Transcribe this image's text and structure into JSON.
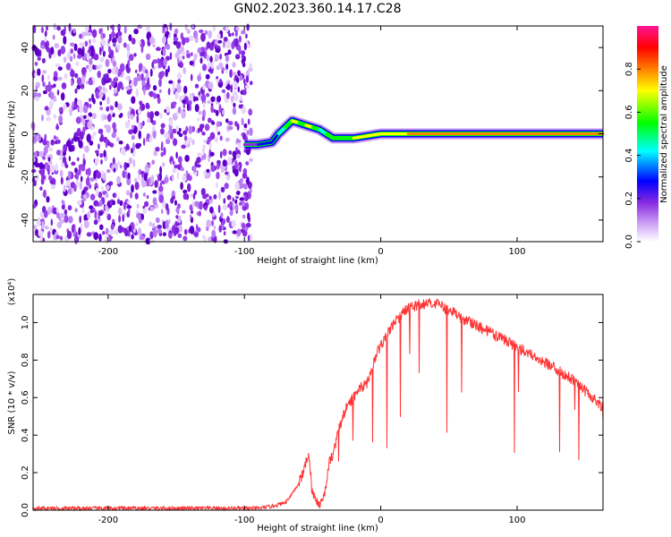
{
  "title": "GN02.2023.360.14.17.C28",
  "chart_data": [
    {
      "type": "heatmap",
      "title": "",
      "xlabel": "Height of straight line (km)",
      "ylabel": "Frequency (Hz)",
      "xlim": [
        -255,
        163
      ],
      "ylim": [
        -50,
        50
      ],
      "xticks": [
        -200,
        -100,
        0,
        100
      ],
      "yticks": [
        -40,
        -20,
        0,
        20,
        40
      ],
      "colorbar": {
        "label": "Normalized spectral amplitude",
        "range": [
          0.0,
          1.0
        ],
        "ticks": [
          0.0,
          0.2,
          0.4,
          0.6,
          0.8
        ],
        "colormap": [
          "#ffffff",
          "#8a2be2",
          "#0000ff",
          "#00ffff",
          "#00ff00",
          "#ffff00",
          "#ff7f00",
          "#ff0000",
          "#ff1493"
        ]
      },
      "noise_region_x": [
        -255,
        -95
      ],
      "signal_track": {
        "x": [
          -100,
          -90,
          -80,
          -75,
          -70,
          -65,
          -60,
          -55,
          -50,
          -45,
          -40,
          -35,
          -30,
          -20,
          -10,
          0,
          20,
          60,
          100,
          163
        ],
        "frequency_hz": [
          -5,
          -5,
          -4,
          0,
          3,
          6,
          5,
          4,
          3,
          2,
          0,
          -2,
          -2,
          -2,
          -1,
          0,
          0,
          0,
          0,
          0
        ],
        "amplitude": [
          0.2,
          0.3,
          0.35,
          0.5,
          0.6,
          0.7,
          0.6,
          0.7,
          0.55,
          0.5,
          0.6,
          0.6,
          0.65,
          0.7,
          0.7,
          0.75,
          0.8,
          0.8,
          0.8,
          0.5
        ]
      }
    },
    {
      "type": "line",
      "title": "",
      "xlabel": "Height of straight line (km)",
      "ylabel": "SNR (10 * v/v)",
      "y_multiplier": "(x10⁴)",
      "xlim": [
        -255,
        163
      ],
      "ylim": [
        0,
        1.15
      ],
      "xticks": [
        -200,
        -100,
        0,
        100
      ],
      "yticks": [
        0.0,
        0.2,
        0.4,
        0.6,
        0.8,
        1.0
      ],
      "yticklabels": [
        "0.0",
        "0.2",
        "0.4",
        "0.6",
        "0.8",
        "1.0"
      ],
      "series": [
        {
          "color": "#ff3333",
          "x": [
            -255,
            -200,
            -150,
            -100,
            -90,
            -80,
            -70,
            -62,
            -58,
            -53,
            -50,
            -48,
            -45,
            -42,
            -40,
            -38,
            -35,
            -30,
            -25,
            -20,
            -15,
            -10,
            -5,
            0,
            10,
            20,
            30,
            40,
            50,
            60,
            80,
            100,
            120,
            140,
            163
          ],
          "y": [
            0.01,
            0.01,
            0.01,
            0.01,
            0.01,
            0.02,
            0.04,
            0.12,
            0.18,
            0.3,
            0.1,
            0.05,
            0.04,
            0.08,
            0.12,
            0.25,
            0.3,
            0.45,
            0.55,
            0.6,
            0.65,
            0.68,
            0.8,
            0.88,
            1.0,
            1.08,
            1.1,
            1.1,
            1.07,
            1.02,
            0.95,
            0.87,
            0.79,
            0.7,
            0.55
          ]
        }
      ]
    }
  ]
}
